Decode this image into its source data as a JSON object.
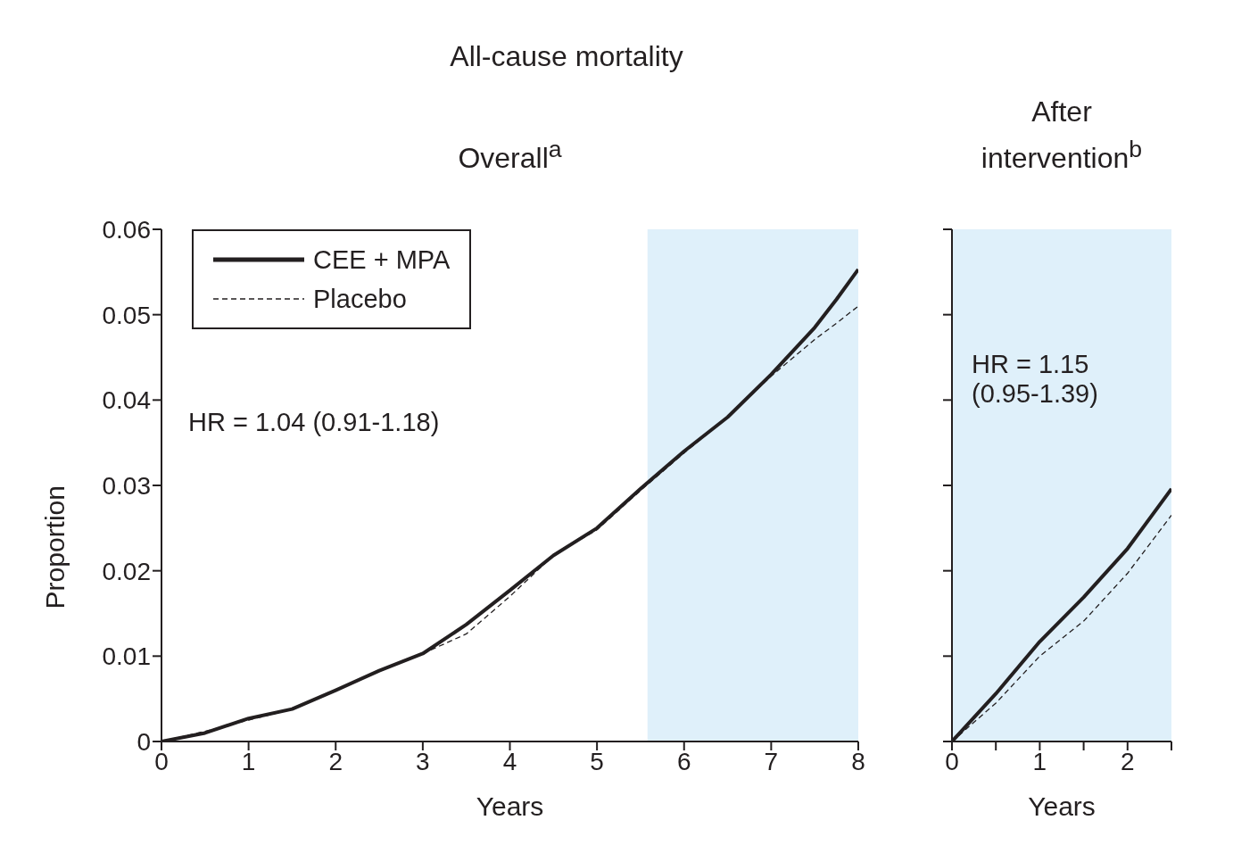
{
  "chart_data": [
    {
      "type": "line",
      "title": "All-cause mortality",
      "subtitle": "Overall$^{a}$",
      "xlabel": "Years",
      "ylabel": "Proportion",
      "xlim": [
        0,
        8
      ],
      "xticks": [
        0,
        1,
        2,
        3,
        4,
        5,
        6,
        7,
        8
      ],
      "ylim": [
        0,
        0.06
      ],
      "yticks": [
        0,
        0.01,
        0.02,
        0.03,
        0.04,
        0.05,
        0.06
      ],
      "grid": false,
      "legend": "top left",
      "marker": "none",
      "series": [
        {
          "name": "CEE + MPA",
          "color": "#231f20",
          "line_style": "solid",
          "x": [
            0,
            0.5,
            1,
            1.5,
            2,
            2.5,
            3,
            3.5,
            4,
            4.5,
            5,
            5.5,
            6,
            6.5,
            7,
            7.5,
            7.75,
            8
          ],
          "values": [
            0,
            0.001,
            0.0027,
            0.0038,
            0.006,
            0.0083,
            0.0103,
            0.0137,
            0.0177,
            0.0218,
            0.025,
            0.0296,
            0.034,
            0.038,
            0.043,
            0.0485,
            0.0518,
            0.0553
          ]
        },
        {
          "name": "Placebo",
          "color": "#231f20",
          "line_style": "dashed",
          "x": [
            0,
            0.5,
            1,
            1.5,
            2,
            2.5,
            3,
            3.5,
            4,
            4.5,
            5,
            5.5,
            6,
            6.5,
            7,
            7.5,
            7.75,
            8
          ],
          "values": [
            0,
            0.0012,
            0.0025,
            0.0038,
            0.006,
            0.0083,
            0.0103,
            0.0126,
            0.017,
            0.0218,
            0.0248,
            0.0294,
            0.0338,
            0.038,
            0.0428,
            0.0471,
            0.049,
            0.051
          ]
        }
      ],
      "bands": [
        {
          "axis": "x",
          "from": 5.58,
          "to": 8,
          "color": "#dff0fa"
        }
      ],
      "annotations": [
        "HR = 1.04 (0.91-1.18)"
      ]
    },
    {
      "type": "line",
      "subtitle": "After intervention$^{b}$",
      "xlabel": "Years",
      "xlim": [
        0,
        2.5
      ],
      "xticks": [
        0,
        {
          "value": 0.5,
          "label": null
        },
        1,
        {
          "value": 1.5,
          "label": null
        },
        2,
        {
          "value": 2.5,
          "label": null
        }
      ],
      "ylim": [
        0,
        0.06
      ],
      "yticks": [
        0,
        0.01,
        0.02,
        0.03,
        0.04,
        0.05,
        0.06
      ],
      "tick_labels": "x",
      "grid": false,
      "marker": "none",
      "series": [
        {
          "color": "#231f20",
          "line_style": "solid",
          "x": [
            0,
            0.5,
            1,
            1.5,
            2,
            2.5
          ],
          "values": [
            0,
            0.0056,
            0.0117,
            0.0169,
            0.0226,
            0.0296
          ]
        },
        {
          "color": "#231f20",
          "line_style": "dashed",
          "x": [
            0,
            0.5,
            1,
            1.5,
            2,
            2.5
          ],
          "values": [
            0,
            0.0045,
            0.01,
            0.0141,
            0.0197,
            0.0265
          ]
        }
      ],
      "bands": [
        {
          "axis": "x",
          "from": 0,
          "to": 2.5,
          "color": "#dff0fa"
        }
      ],
      "annotations": [
        "HR = 1.15 (0.95-1.39)"
      ]
    }
  ]
}
